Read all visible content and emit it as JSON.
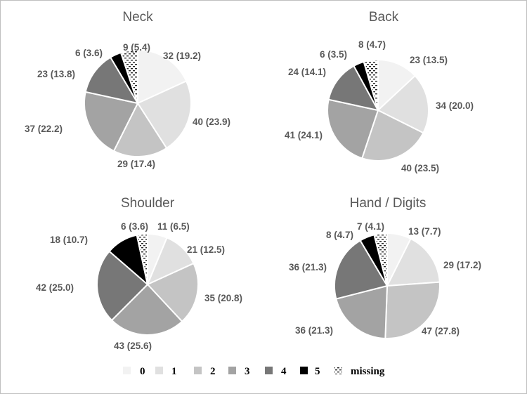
{
  "legend": {
    "items": [
      {
        "label": "0",
        "color": "#f2f2f2"
      },
      {
        "label": "1",
        "color": "#e0e0e0"
      },
      {
        "label": "2",
        "color": "#c4c4c4"
      },
      {
        "label": "3",
        "color": "#a3a3a3"
      },
      {
        "label": "4",
        "color": "#777777"
      },
      {
        "label": "5",
        "color": "#000000"
      },
      {
        "label": "missing",
        "color": "pattern"
      }
    ]
  },
  "chart_data": [
    {
      "type": "pie",
      "title": "Neck",
      "categories": [
        "0",
        "1",
        "2",
        "3",
        "4",
        "5",
        "missing"
      ],
      "values": [
        32,
        40,
        29,
        37,
        23,
        6,
        9
      ],
      "percents": [
        19.2,
        23.9,
        17.4,
        22.2,
        13.8,
        3.6,
        5.4
      ],
      "labels": [
        "32 (19.2)",
        "40 (23.9)",
        "29 (17.4)",
        "37 (22.2)",
        "23 (13.8)",
        "6 (3.6)",
        "9 (5.4)"
      ]
    },
    {
      "type": "pie",
      "title": "Back",
      "categories": [
        "0",
        "1",
        "2",
        "3",
        "4",
        "5",
        "missing"
      ],
      "values": [
        23,
        34,
        40,
        41,
        24,
        6,
        8
      ],
      "percents": [
        13.5,
        20.0,
        23.5,
        24.1,
        14.1,
        3.5,
        4.7
      ],
      "labels": [
        "23 (13.5)",
        "34 (20.0)",
        "40 (23.5)",
        "41 (24.1)",
        "24 (14.1)",
        "6 (3.5)",
        "8 (4.7)"
      ]
    },
    {
      "type": "pie",
      "title": "Shoulder",
      "categories": [
        "0",
        "1",
        "2",
        "3",
        "4",
        "5",
        "missing"
      ],
      "values": [
        11,
        21,
        35,
        43,
        42,
        18,
        6
      ],
      "percents": [
        6.5,
        12.5,
        20.8,
        25.6,
        25.0,
        10.7,
        3.6
      ],
      "labels": [
        "11 (6.5)",
        "21 (12.5)",
        "35 (20.8)",
        "43 (25.6)",
        "42 (25.0)",
        "18 (10.7)",
        "6 (3.6)"
      ]
    },
    {
      "type": "pie",
      "title": "Hand / Digits",
      "categories": [
        "0",
        "1",
        "2",
        "3",
        "4",
        "5",
        "missing"
      ],
      "values": [
        13,
        29,
        47,
        36,
        36,
        8,
        7
      ],
      "percents": [
        7.7,
        17.2,
        27.8,
        21.3,
        21.3,
        4.7,
        4.1
      ],
      "labels": [
        "13 (7.7)",
        "29 (17.2)",
        "47 (27.8)",
        "36 (21.3)",
        "36 (21.3)",
        "8 (4.7)",
        "7 (4.1)"
      ]
    }
  ]
}
